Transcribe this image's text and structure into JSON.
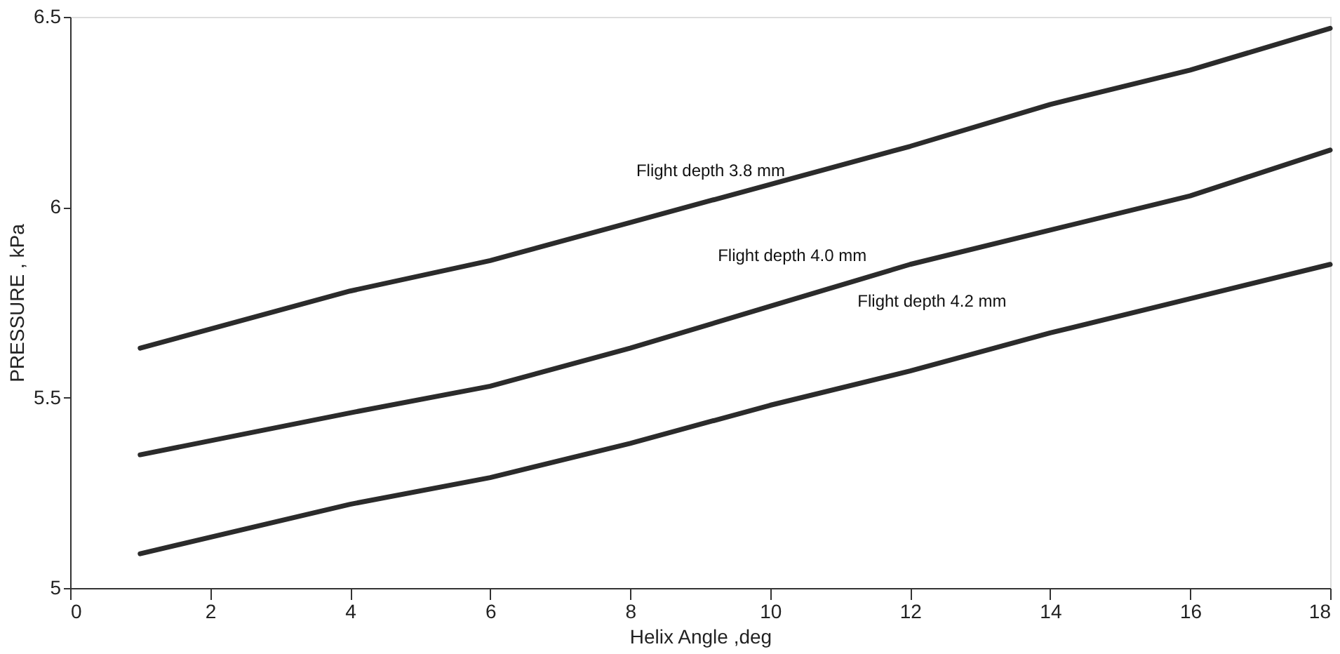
{
  "chart_data": {
    "type": "line",
    "xlabel": "Helix Angle ,deg",
    "ylabel": "PRESSURE , kPa",
    "xlim": [
      0,
      18
    ],
    "ylim": [
      5,
      6.5
    ],
    "xticks": [
      0,
      2,
      4,
      6,
      8,
      10,
      12,
      14,
      16,
      18
    ],
    "yticks": [
      5,
      5.5,
      6,
      6.5
    ],
    "grid": false,
    "marker": "none",
    "line_style": "solid",
    "x": [
      1,
      4,
      6,
      8,
      10,
      12,
      14,
      16,
      18
    ],
    "series": [
      {
        "color": "#2b2b2b",
        "values": [
          5.63,
          5.78,
          5.86,
          5.96,
          6.06,
          6.16,
          6.27,
          6.36,
          6.47
        ]
      },
      {
        "color": "#2b2b2b",
        "values": [
          5.35,
          5.46,
          5.53,
          5.63,
          5.74,
          5.85,
          5.94,
          6.03,
          6.15
        ]
      },
      {
        "color": "#2b2b2b",
        "values": [
          5.09,
          5.22,
          5.29,
          5.38,
          5.48,
          5.57,
          5.67,
          5.76,
          5.85
        ]
      }
    ],
    "annotations": [
      "Flight depth 3.8 mm",
      "Flight depth 4.0 mm",
      "Flight depth 4.2 mm"
    ]
  }
}
